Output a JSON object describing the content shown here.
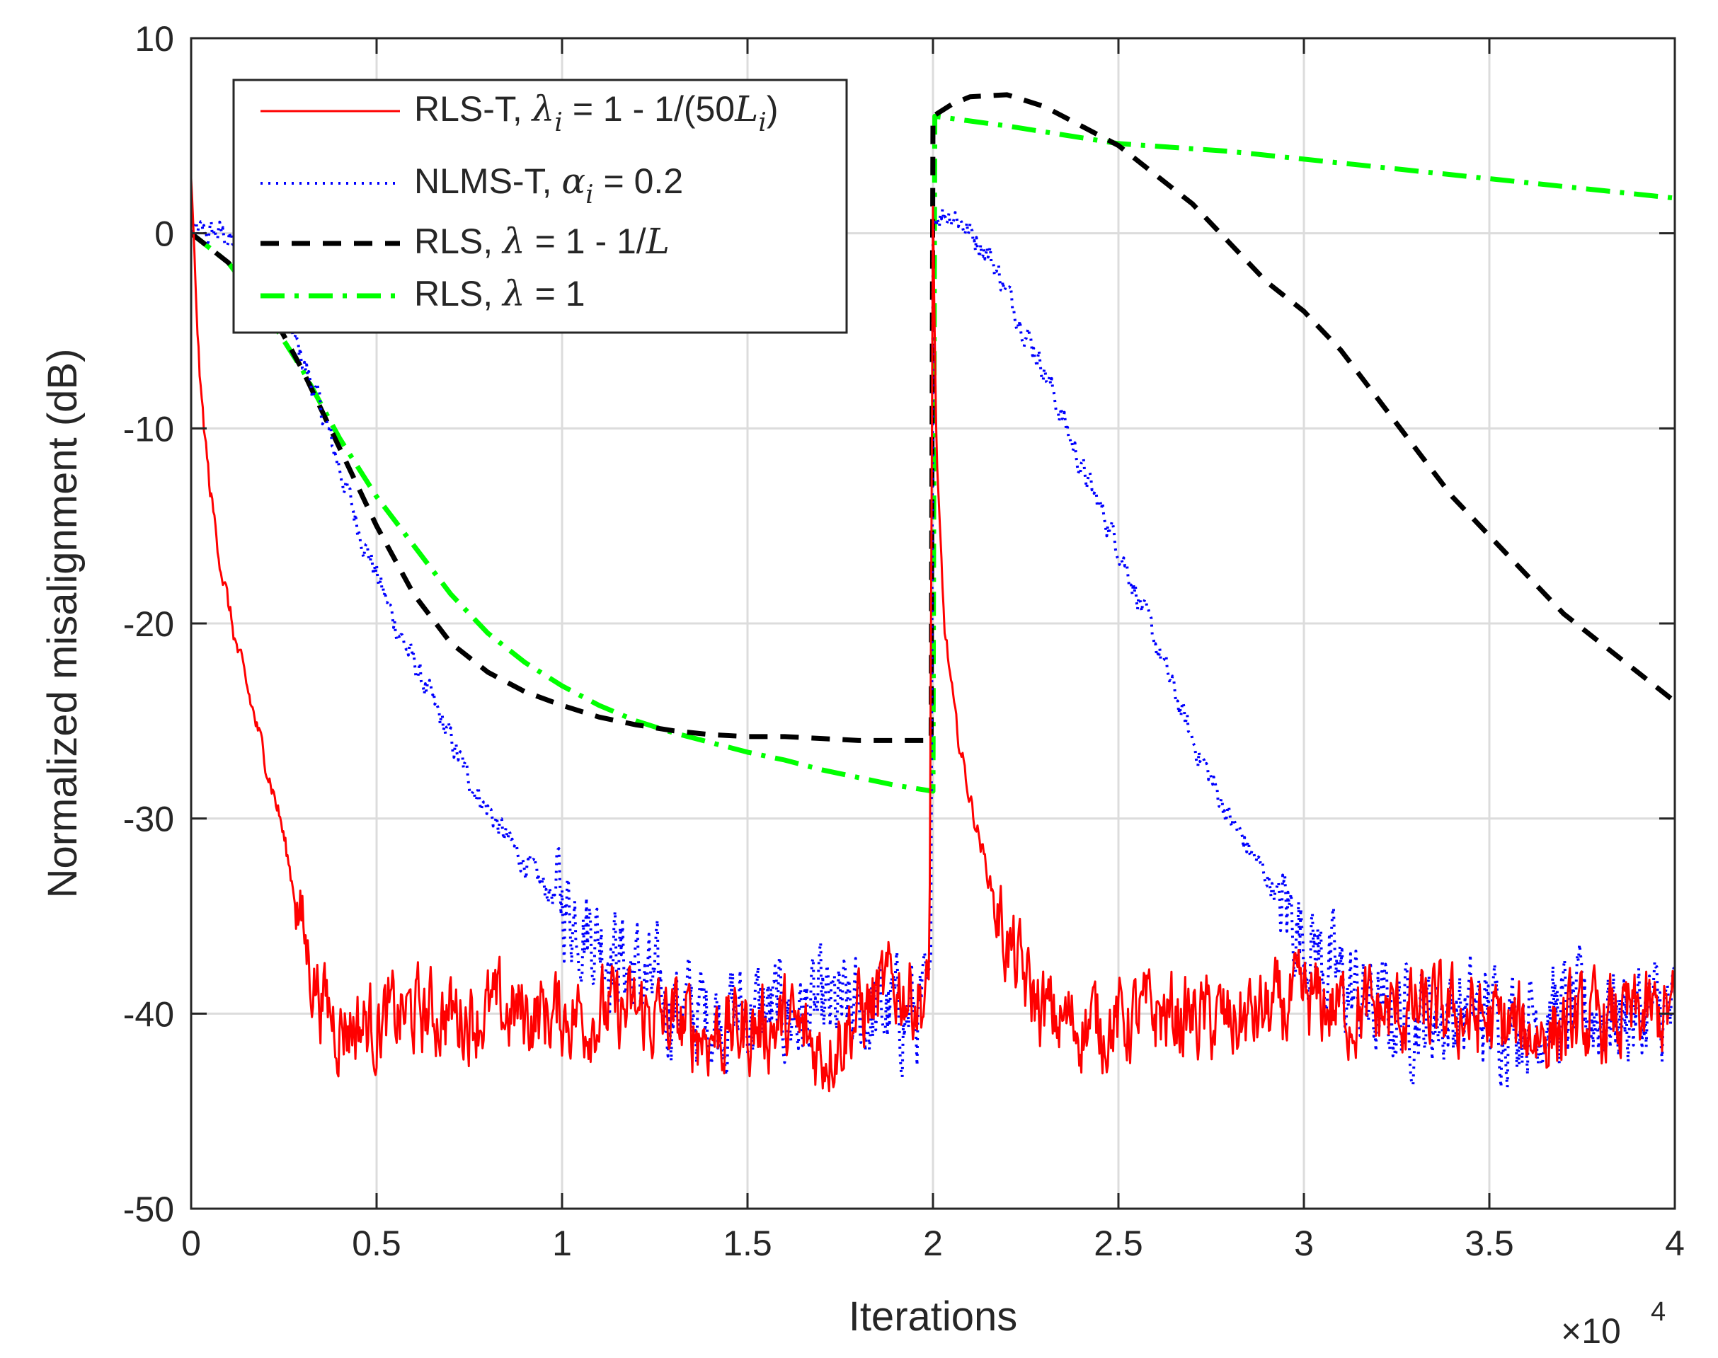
{
  "chart_data": {
    "type": "line",
    "title": "",
    "xlabel": "Iterations",
    "ylabel": "Normalized misalignment (dB)",
    "x_exponent_label": "×10",
    "x_exponent": "4",
    "xlim": [
      0,
      40000
    ],
    "ylim": [
      -50,
      10
    ],
    "grid": true,
    "legend_position": "top-left",
    "x_ticks": [
      0,
      5000,
      10000,
      15000,
      20000,
      25000,
      30000,
      35000,
      40000
    ],
    "x_tick_labels": [
      "0",
      "0.5",
      "1",
      "1.5",
      "2",
      "2.5",
      "3",
      "3.5",
      "4"
    ],
    "y_ticks": [
      10,
      0,
      -10,
      -20,
      -30,
      -40,
      -50
    ],
    "y_tick_labels": [
      "10",
      "0",
      "-10",
      "-20",
      "-30",
      "-40",
      "-50"
    ],
    "series": [
      {
        "name": "RLS-T, λi = 1 - 1/(50Li)",
        "legend_parts": [
          "RLS-T, ",
          "λ",
          "i",
          " = 1 - 1/(50",
          "L",
          "i",
          ")"
        ],
        "color": "#ff0000",
        "style": "solid",
        "noise_amplitude_db": 1.8,
        "x": [
          0,
          100,
          250,
          500,
          800,
          1200,
          1600,
          2000,
          2400,
          2800,
          3200,
          3600,
          4000,
          5000,
          6000,
          8000,
          10000,
          12000,
          14000,
          16000,
          17000,
          18000,
          19000,
          19900,
          20000,
          20100,
          20300,
          20600,
          21000,
          21500,
          22000,
          22500,
          23000,
          23500,
          24000,
          25000,
          26000,
          28000,
          30000,
          32000,
          34000,
          36000,
          38000,
          40000
        ],
        "y": [
          3,
          -2,
          -8,
          -13,
          -17,
          -21,
          -24,
          -27,
          -30,
          -34,
          -37.5,
          -39.5,
          -40.5,
          -40.5,
          -40,
          -40,
          -40,
          -40,
          -41,
          -40.5,
          -42,
          -40,
          -38.5,
          -39.5,
          1,
          -12,
          -20,
          -25,
          -29,
          -33,
          -36.5,
          -38.5,
          -40,
          -40.5,
          -40.5,
          -40.5,
          -40,
          -40.5,
          -39.5,
          -40,
          -40,
          -41,
          -40.5,
          -40
        ]
      },
      {
        "name": "NLMS-T, αi = 0.2",
        "legend_parts": [
          "NLMS-T, ",
          "α",
          "i",
          " = 0.2",
          "",
          "",
          ""
        ],
        "color": "#0000ff",
        "style": "dotted",
        "noise_amplitude_db": 2.2,
        "x": [
          0,
          800,
          1500,
          2500,
          3500,
          4500,
          5500,
          6500,
          7500,
          8500,
          9500,
          10500,
          11500,
          12500,
          13500,
          14500,
          16000,
          17500,
          19000,
          19950,
          20000,
          20100,
          20600,
          21000,
          21500,
          22000,
          22500,
          23000,
          24000,
          25000,
          26000,
          27000,
          28000,
          29000,
          30000,
          31000,
          32000,
          33000,
          34000,
          36000,
          38000,
          40000
        ],
        "y": [
          0,
          0,
          -1,
          -4,
          -9,
          -15,
          -20,
          -24,
          -28,
          -31,
          -33.5,
          -35,
          -37,
          -39,
          -40,
          -40,
          -40,
          -40,
          -40,
          -40,
          0,
          1,
          1,
          0,
          -1,
          -3,
          -5,
          -7,
          -12,
          -16,
          -21,
          -26,
          -30,
          -33,
          -36,
          -38.5,
          -40,
          -40,
          -40,
          -40,
          -40,
          -40
        ]
      },
      {
        "name": "RLS, λ = 1 - 1/L",
        "legend_parts": [
          "RLS, ",
          "λ",
          "",
          " = 1 - 1/",
          "L",
          "",
          ""
        ],
        "color": "#000000",
        "style": "dashed",
        "noise_amplitude_db": 0,
        "x": [
          0,
          1000,
          2000,
          3000,
          4000,
          5000,
          6000,
          7000,
          8000,
          9000,
          10000,
          11000,
          12000,
          13000,
          14000,
          15000,
          16000,
          17000,
          18000,
          19000,
          19950,
          20000,
          20500,
          21000,
          22000,
          23000,
          24000,
          25000,
          26000,
          27000,
          28000,
          29000,
          30000,
          31000,
          32000,
          33000,
          34000,
          35000,
          36000,
          37000,
          38000,
          39000,
          40000
        ],
        "y": [
          0,
          -1.5,
          -3.5,
          -7,
          -11,
          -15,
          -18.5,
          -21,
          -22.5,
          -23.5,
          -24.2,
          -24.8,
          -25.2,
          -25.5,
          -25.7,
          -25.8,
          -25.8,
          -25.9,
          -26,
          -26,
          -26,
          6,
          6.6,
          7,
          7.1,
          6.5,
          5.5,
          4.5,
          3,
          1.5,
          -0.5,
          -2.5,
          -4,
          -6,
          -8.5,
          -11,
          -13.5,
          -15.5,
          -17.5,
          -19.5,
          -21,
          -22.5,
          -24
        ]
      },
      {
        "name": "RLS, λ = 1",
        "legend_parts": [
          "RLS, ",
          "λ",
          "",
          " = 1",
          "",
          "",
          ""
        ],
        "color": "#00ff00",
        "style": "dashdot",
        "noise_amplitude_db": 0,
        "x": [
          0,
          1000,
          2000,
          3000,
          4000,
          5000,
          6000,
          7000,
          8000,
          9000,
          10000,
          11000,
          12000,
          13000,
          14000,
          15000,
          16000,
          17000,
          18000,
          19000,
          20000,
          20050,
          22000,
          25000,
          28000,
          31000,
          34000,
          37000,
          40000
        ],
        "y": [
          0,
          -1.5,
          -4,
          -7,
          -10.5,
          -13.5,
          -16,
          -18.5,
          -20.5,
          -22,
          -23.2,
          -24.2,
          -25,
          -25.6,
          -26.1,
          -26.6,
          -27,
          -27.5,
          -27.9,
          -28.3,
          -28.6,
          6,
          5.5,
          4.6,
          4.2,
          3.6,
          3,
          2.4,
          1.8
        ]
      }
    ]
  }
}
